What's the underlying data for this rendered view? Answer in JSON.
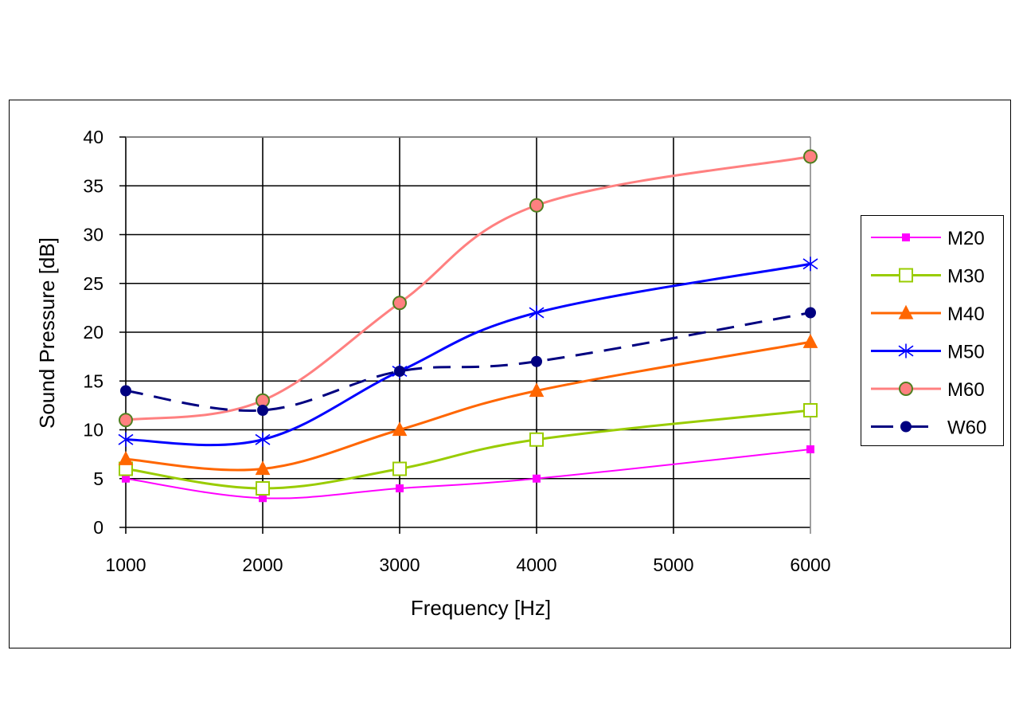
{
  "chart_data": {
    "type": "line",
    "title": "",
    "xlabel": "Frequency  [Hz]",
    "ylabel": "Sound Pressure [dB]",
    "x": [
      1000,
      2000,
      3000,
      4000,
      6000
    ],
    "xticks": [
      "1000",
      "2000",
      "3000",
      "4000",
      "5000",
      "6000"
    ],
    "yticks": [
      "0",
      "5",
      "10",
      "15",
      "20",
      "25",
      "30",
      "35",
      "40"
    ],
    "xlim": [
      1000,
      6000
    ],
    "ylim": [
      0,
      40
    ],
    "grid": true,
    "legend_position": "right",
    "series": [
      {
        "name": "M20",
        "values": [
          5,
          3,
          4,
          5,
          8
        ],
        "color": "#ff00ff",
        "marker": "square-filled",
        "dash": false
      },
      {
        "name": "M30",
        "values": [
          6,
          4,
          6,
          9,
          12
        ],
        "color": "#99cc00",
        "marker": "square-open",
        "dash": false
      },
      {
        "name": "M40",
        "values": [
          7,
          6,
          10,
          14,
          19
        ],
        "color": "#ff6600",
        "marker": "triangle",
        "dash": false
      },
      {
        "name": "M50",
        "values": [
          9,
          9,
          16,
          22,
          27
        ],
        "color": "#0000ff",
        "marker": "asterisk",
        "dash": false
      },
      {
        "name": "M60",
        "values": [
          11,
          13,
          23,
          33,
          38
        ],
        "color": "#ff8080",
        "marker": "circle-green-edge",
        "dash": false
      },
      {
        "name": "W60",
        "values": [
          14,
          12,
          16,
          17,
          22
        ],
        "color": "#000080",
        "marker": "circle-filled",
        "dash": true
      }
    ]
  }
}
